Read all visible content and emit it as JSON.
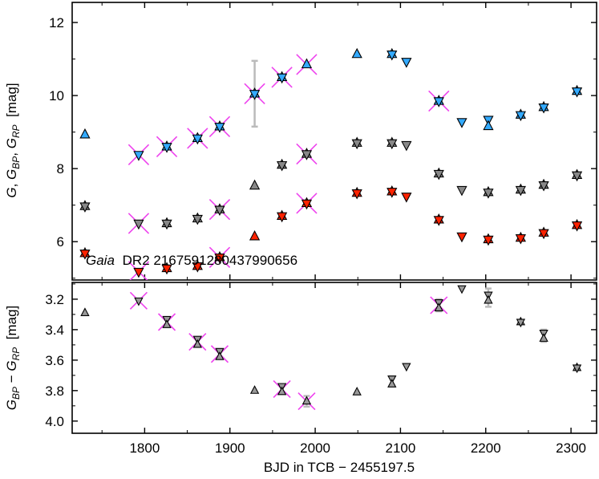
{
  "chart_data": [
    {
      "type": "scatter",
      "panel": "top",
      "source_label_italic": "Gaia",
      "source_label_rest": "DR2 2167591280437990656",
      "xlabel": "BJD in TCB − 2455197.5",
      "ylabel_parts": [
        "G",
        ", ",
        "G",
        "BP",
        ", ",
        "G",
        "RP",
        "  [mag]"
      ],
      "xlim": [
        1715,
        2330
      ],
      "ylim": [
        12.55,
        4.95
      ],
      "y_inverted": true,
      "xticks": [
        1800,
        1900,
        2000,
        2100,
        2200,
        2300
      ],
      "yticks": [
        6,
        8,
        10,
        12
      ],
      "series": [
        {
          "name": "G_RP",
          "color": "#ff2200",
          "points": [
            {
              "x": 1730,
              "y": 5.68,
              "m": "hex"
            },
            {
              "x": 1793,
              "y": 5.18,
              "m": "down",
              "bad": true
            },
            {
              "x": 1826,
              "y": 5.27,
              "m": "hex"
            },
            {
              "x": 1862,
              "y": 5.33,
              "m": "hex"
            },
            {
              "x": 1888,
              "y": 5.57,
              "m": "hex",
              "bad": true
            },
            {
              "x": 1929,
              "y": 6.14,
              "m": "up"
            },
            {
              "x": 1961,
              "y": 6.7,
              "m": "hex"
            },
            {
              "x": 1990,
              "y": 7.05,
              "m": "hex",
              "bad": true
            },
            {
              "x": 2049,
              "y": 7.33,
              "m": "hex"
            },
            {
              "x": 2090,
              "y": 7.37,
              "m": "hex"
            },
            {
              "x": 2107,
              "y": 7.24,
              "m": "down"
            },
            {
              "x": 2145,
              "y": 6.6,
              "m": "hex"
            },
            {
              "x": 2172,
              "y": 6.15,
              "m": "down"
            },
            {
              "x": 2203,
              "y": 6.06,
              "m": "hex"
            },
            {
              "x": 2241,
              "y": 6.1,
              "m": "hex"
            },
            {
              "x": 2268,
              "y": 6.24,
              "m": "hex"
            },
            {
              "x": 2307,
              "y": 6.45,
              "m": "hex"
            }
          ]
        },
        {
          "name": "G",
          "color": "#888888",
          "points": [
            {
              "x": 1730,
              "y": 6.97,
              "m": "hex"
            },
            {
              "x": 1793,
              "y": 6.5,
              "m": "down",
              "bad": true
            },
            {
              "x": 1826,
              "y": 6.5,
              "m": "hex"
            },
            {
              "x": 1862,
              "y": 6.63,
              "m": "hex"
            },
            {
              "x": 1888,
              "y": 6.88,
              "m": "hex",
              "bad": true
            },
            {
              "x": 1929,
              "y": 7.53,
              "m": "up"
            },
            {
              "x": 1961,
              "y": 8.1,
              "m": "hex"
            },
            {
              "x": 1990,
              "y": 8.4,
              "m": "hex",
              "bad": true
            },
            {
              "x": 2049,
              "y": 8.7,
              "m": "hex"
            },
            {
              "x": 2090,
              "y": 8.7,
              "m": "hex"
            },
            {
              "x": 2107,
              "y": 8.65,
              "m": "down"
            },
            {
              "x": 2145,
              "y": 7.86,
              "m": "hex"
            },
            {
              "x": 2172,
              "y": 7.42,
              "m": "down"
            },
            {
              "x": 2203,
              "y": 7.35,
              "m": "hex"
            },
            {
              "x": 2241,
              "y": 7.42,
              "m": "hex"
            },
            {
              "x": 2268,
              "y": 7.55,
              "m": "hex"
            },
            {
              "x": 2307,
              "y": 7.82,
              "m": "hex"
            }
          ]
        },
        {
          "name": "G_BP",
          "color": "#33aaff",
          "points": [
            {
              "x": 1730,
              "y": 8.93,
              "m": "up"
            },
            {
              "x": 1793,
              "y": 8.38,
              "m": "down",
              "bad": true
            },
            {
              "x": 1826,
              "y": 8.6,
              "m": "hex",
              "bad": true
            },
            {
              "x": 1862,
              "y": 8.83,
              "m": "hex",
              "bad": true
            },
            {
              "x": 1888,
              "y": 9.15,
              "m": "hex",
              "bad": true
            },
            {
              "x": 1929,
              "y": 10.05,
              "m": "hex",
              "bad": true,
              "err": 0.9
            },
            {
              "x": 1961,
              "y": 10.5,
              "m": "hex",
              "bad": true
            },
            {
              "x": 1990,
              "y": 10.85,
              "m": "up",
              "bad": true
            },
            {
              "x": 2049,
              "y": 11.13,
              "m": "up"
            },
            {
              "x": 2090,
              "y": 11.13,
              "m": "hex"
            },
            {
              "x": 2107,
              "y": 10.93,
              "m": "down"
            },
            {
              "x": 2145,
              "y": 9.85,
              "m": "hex",
              "bad": true
            },
            {
              "x": 2172,
              "y": 9.28,
              "m": "down"
            },
            {
              "x": 2203,
              "y": 9.25,
              "m": "hourglass"
            },
            {
              "x": 2241,
              "y": 9.47,
              "m": "hex"
            },
            {
              "x": 2268,
              "y": 9.68,
              "m": "hex"
            },
            {
              "x": 2307,
              "y": 10.12,
              "m": "hex"
            }
          ]
        }
      ]
    },
    {
      "type": "scatter",
      "panel": "bottom",
      "xlabel": "BJD in TCB − 2455197.5",
      "ylabel_parts": [
        "G",
        "BP",
        " − ",
        "G",
        "RP",
        "  [mag]"
      ],
      "xlim": [
        1715,
        2330
      ],
      "ylim": [
        3.09,
        4.08
      ],
      "xticks": [
        1800,
        1900,
        2000,
        2100,
        2200,
        2300
      ],
      "xticklabels": [
        "1800",
        "1900",
        "2000",
        "2100",
        "2200",
        "2300"
      ],
      "yticks": [
        3.2,
        3.4,
        3.6,
        3.8,
        4.0
      ],
      "yticklabels": [
        "3.2",
        "3.4",
        "3.6",
        "3.8",
        "4.0"
      ],
      "series": [
        {
          "name": "G_BP - G_RP",
          "color": "#999999",
          "points": [
            {
              "x": 1730,
              "y": 3.29,
              "m": "up"
            },
            {
              "x": 1793,
              "y": 3.21,
              "m": "down",
              "bad": true
            },
            {
              "x": 1826,
              "y": 3.35,
              "m": "hourglass",
              "bad": true
            },
            {
              "x": 1862,
              "y": 3.48,
              "m": "hourglass",
              "bad": true
            },
            {
              "x": 1888,
              "y": 3.56,
              "m": "hourglass",
              "bad": true
            },
            {
              "x": 1929,
              "y": 3.8,
              "m": "up"
            },
            {
              "x": 1961,
              "y": 3.79,
              "m": "hourglass",
              "bad": true
            },
            {
              "x": 1990,
              "y": 3.87,
              "m": "up",
              "bad": true,
              "err": 0.035
            },
            {
              "x": 2049,
              "y": 3.81,
              "m": "up"
            },
            {
              "x": 2090,
              "y": 3.74,
              "m": "hourglass"
            },
            {
              "x": 2107,
              "y": 3.64,
              "m": "down"
            },
            {
              "x": 2145,
              "y": 3.24,
              "m": "hourglass",
              "bad": true,
              "err": 0.04
            },
            {
              "x": 2172,
              "y": 3.13,
              "m": "down"
            },
            {
              "x": 2203,
              "y": 3.19,
              "m": "hourglass",
              "err": 0.06
            },
            {
              "x": 2241,
              "y": 3.35,
              "m": "hex"
            },
            {
              "x": 2268,
              "y": 3.44,
              "m": "hourglass",
              "err": 0.04
            },
            {
              "x": 2307,
              "y": 3.65,
              "m": "hex"
            }
          ]
        }
      ]
    }
  ]
}
